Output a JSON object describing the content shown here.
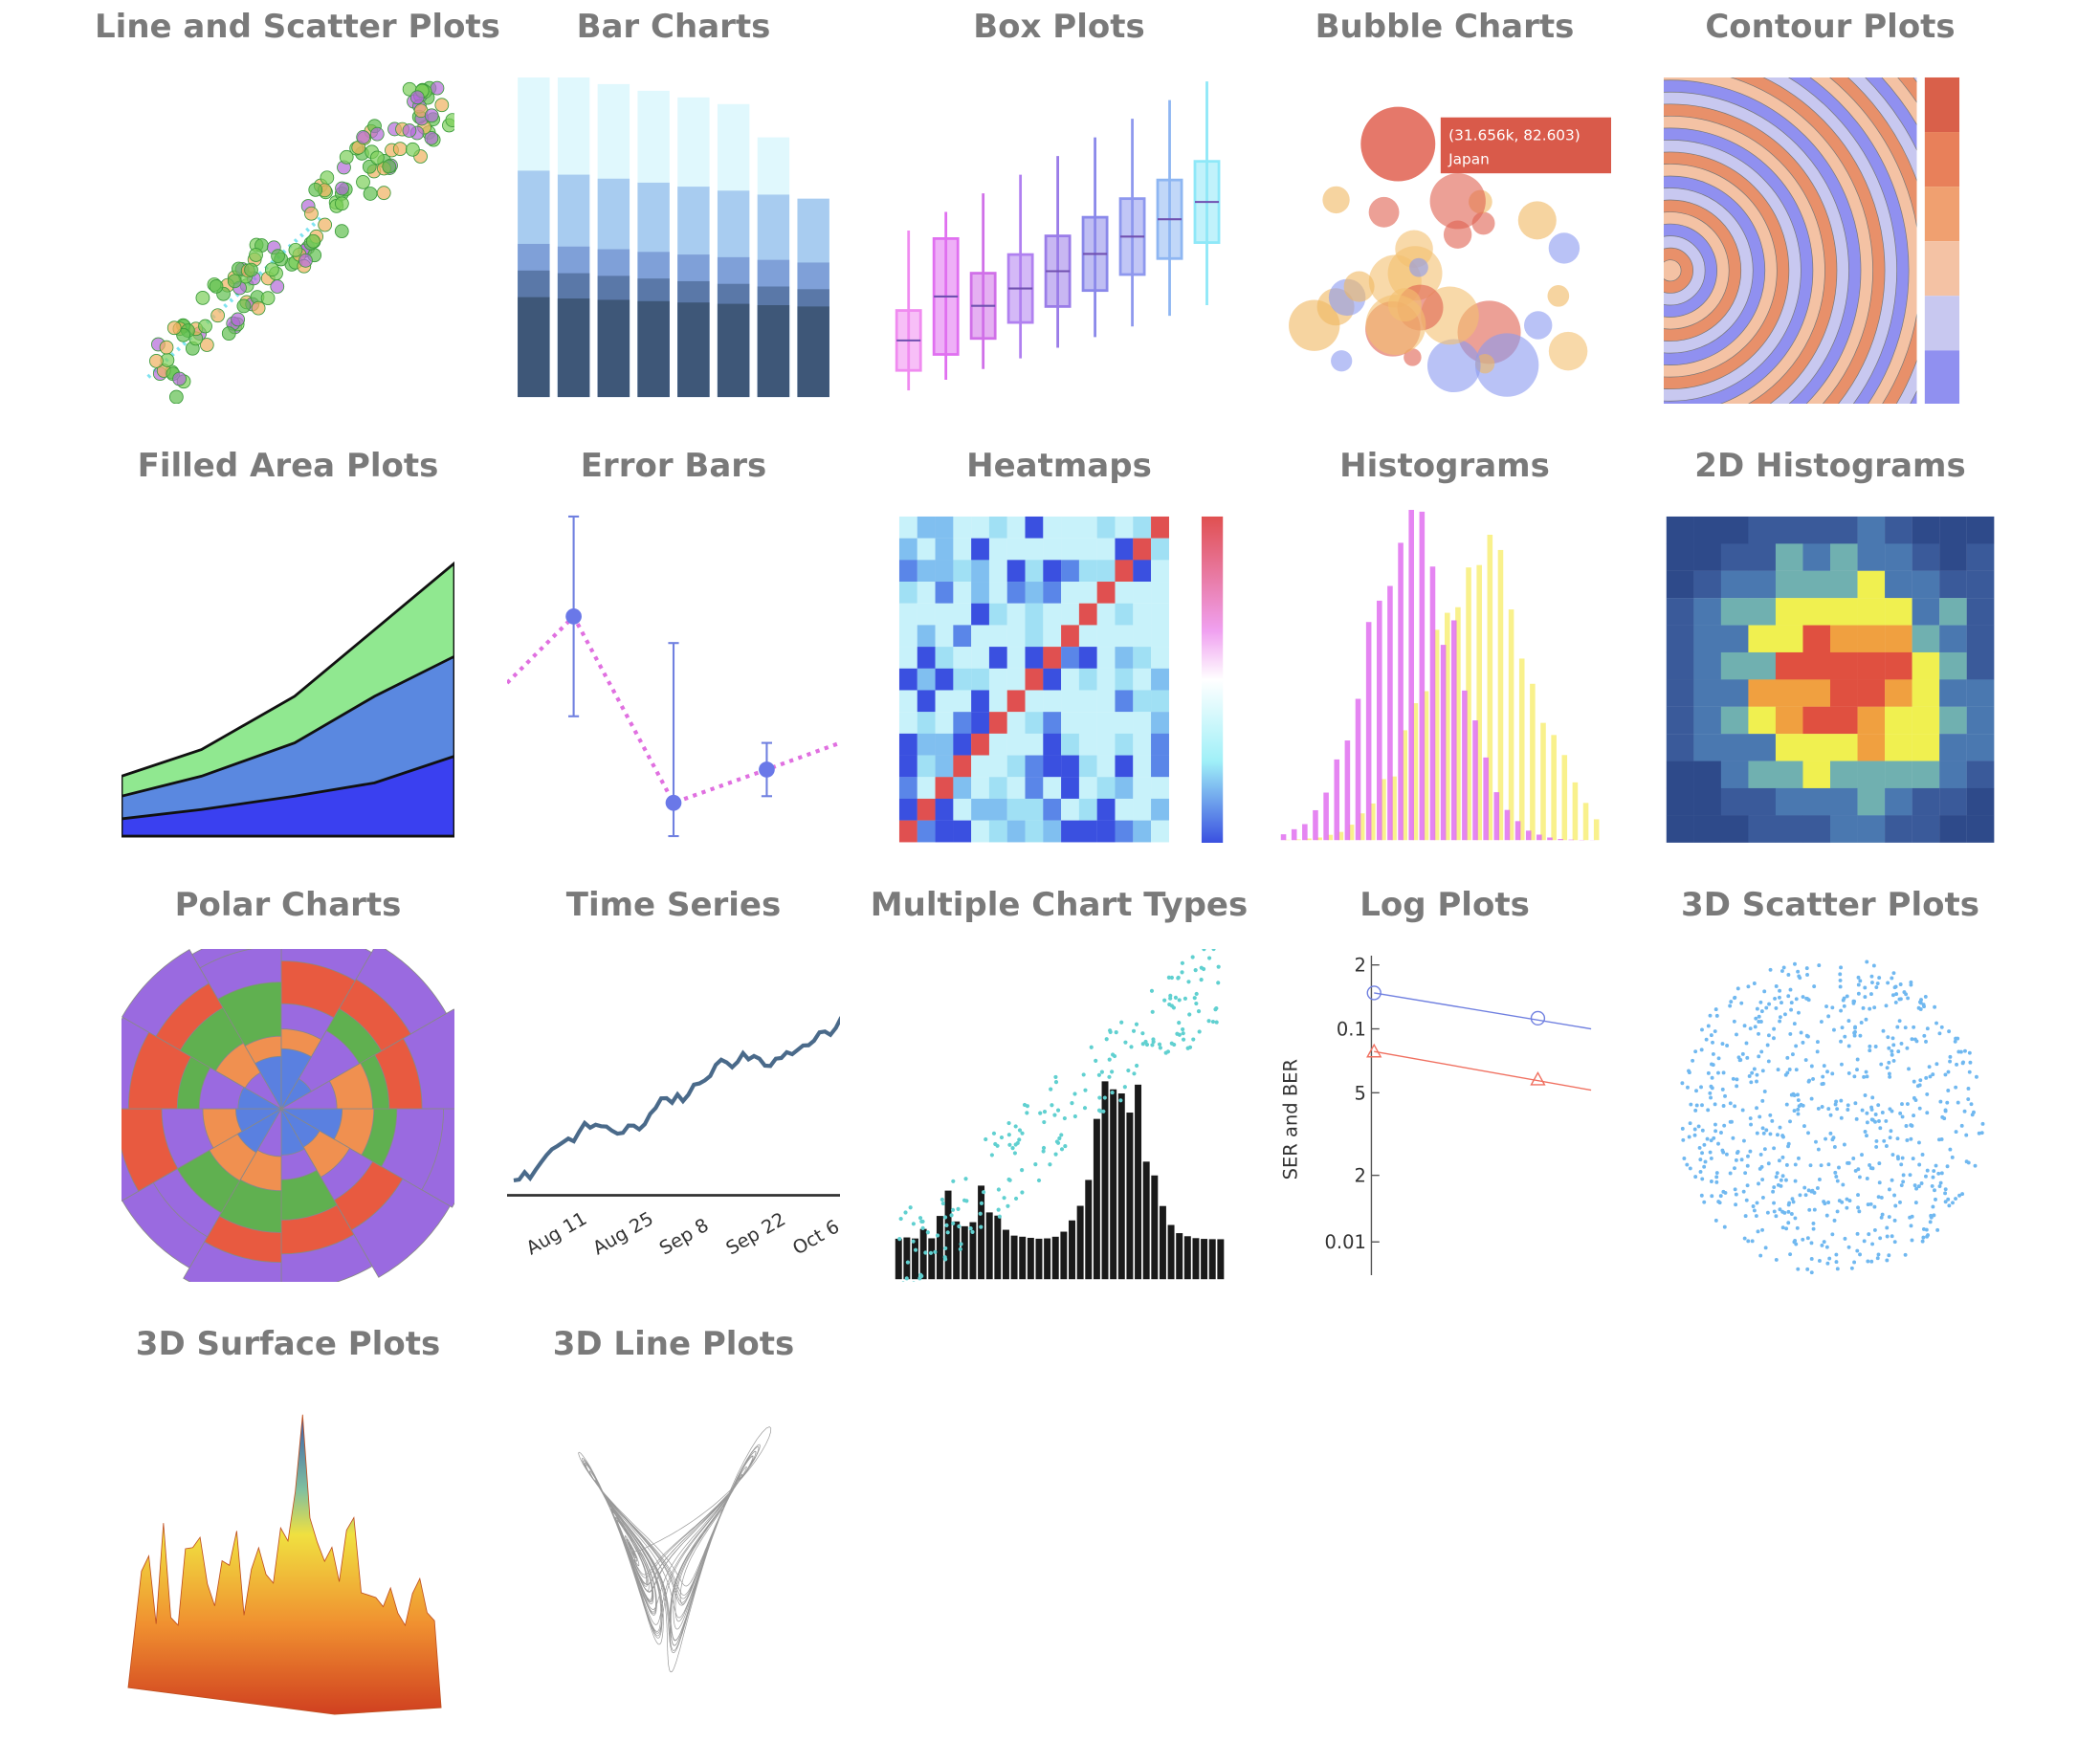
{
  "gallery": {
    "items": [
      {
        "title": "Line and Scatter Plots"
      },
      {
        "title": "Bar Charts"
      },
      {
        "title": "Box Plots"
      },
      {
        "title": "Bubble Charts",
        "tooltip": [
          "(31.656k, 82.603)",
          "Japan"
        ]
      },
      {
        "title": "Contour Plots"
      },
      {
        "title": "Filled Area Plots"
      },
      {
        "title": "Error Bars"
      },
      {
        "title": "Heatmaps"
      },
      {
        "title": "Histograms"
      },
      {
        "title": "2D Histograms"
      },
      {
        "title": "Polar Charts"
      },
      {
        "title": "Time Series",
        "x_labels": [
          "Aug 11",
          "Aug 25",
          "Sep 8",
          "Sep 22",
          "Oct 6"
        ]
      },
      {
        "title": "Multiple Chart Types"
      },
      {
        "title": "Log Plots",
        "y_labels": [
          "2",
          "0.1",
          "5",
          "2",
          "0.01"
        ],
        "y_title": "SER and BER"
      },
      {
        "title": "3D Scatter Plots"
      },
      {
        "title": "3D Surface Plots"
      },
      {
        "title": "3D Line Plots"
      }
    ]
  }
}
